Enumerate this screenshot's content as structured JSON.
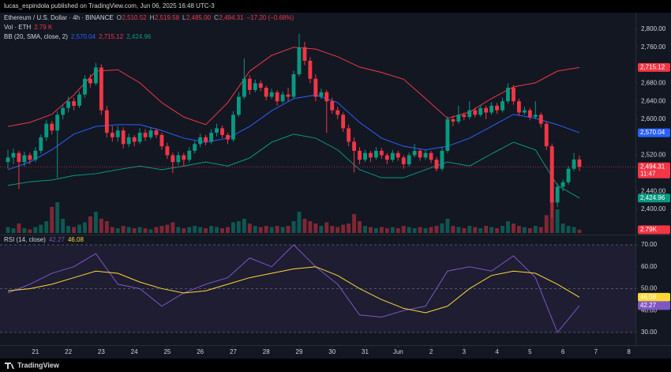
{
  "chart_data": {
    "type": "candlestick",
    "header": "lucas_espindola published on TradingView.com, Jun 06, 2025 16:48 UTC-3",
    "legend": [
      [
        {
          "text": "Ethereum / U.S. Dollar · 4h · BINANCE",
          "color": "#d1d4dc"
        },
        {
          "text": "O",
          "color": "#b2b5be"
        },
        {
          "text": "2,510.52",
          "color": "#f23645"
        },
        {
          "text": "H",
          "color": "#b2b5be"
        },
        {
          "text": "2,519.58",
          "color": "#f23645"
        },
        {
          "text": "L",
          "color": "#b2b5be"
        },
        {
          "text": "2,485.00",
          "color": "#f23645"
        },
        {
          "text": "C",
          "color": "#b2b5be"
        },
        {
          "text": "2,494.31",
          "color": "#f23645"
        },
        {
          "text": "−17.20 (−0.68%)",
          "color": "#f23645"
        }
      ],
      [
        {
          "text": "Vol · ETH",
          "color": "#d1d4dc"
        },
        {
          "text": "2.79 K",
          "color": "#f23645"
        }
      ],
      [
        {
          "text": "BB (20, SMA, close, 2)",
          "color": "#d1d4dc"
        },
        {
          "text": "2,570.04",
          "color": "#2962ff"
        },
        {
          "text": "2,715.12",
          "color": "#f23645"
        },
        {
          "text": "2,424.96",
          "color": "#089981"
        }
      ]
    ],
    "xlim": [
      -1.44,
      114.2
    ],
    "xticks": [
      {
        "value": 5,
        "label": "21"
      },
      {
        "value": 11,
        "label": "22"
      },
      {
        "value": 17,
        "label": "23"
      },
      {
        "value": 23,
        "label": "24"
      },
      {
        "value": 29,
        "label": "25"
      },
      {
        "value": 35,
        "label": "26"
      },
      {
        "value": 41,
        "label": "27"
      },
      {
        "value": 47,
        "label": "28"
      },
      {
        "value": 53,
        "label": "29"
      },
      {
        "value": 59,
        "label": "30"
      },
      {
        "value": 65,
        "label": "31"
      },
      {
        "value": 71,
        "label": "Jun"
      },
      {
        "value": 77,
        "label": "2"
      },
      {
        "value": 83,
        "label": "3"
      },
      {
        "value": 89,
        "label": "4"
      },
      {
        "value": 95,
        "label": "5"
      },
      {
        "value": 101,
        "label": "6"
      },
      {
        "value": 107,
        "label": "7"
      },
      {
        "value": 113,
        "label": "8"
      }
    ],
    "ylim": [
      2349,
      2851
    ],
    "yticks": [
      {
        "value": 2800,
        "label": "2,800.00"
      },
      {
        "value": 2760,
        "label": "2,760.00"
      },
      {
        "value": 2680,
        "label": "2,680.00"
      },
      {
        "value": 2640,
        "label": "2,640.00"
      },
      {
        "value": 2600,
        "label": "2,600.00"
      },
      {
        "value": 2520,
        "label": "2,520.00"
      },
      {
        "value": 2440,
        "label": "2,440.00"
      },
      {
        "value": 2400,
        "label": "2,400.00"
      }
    ],
    "up_color": "#089981",
    "down_color": "#f23645",
    "candles": [
      [
        2505,
        2532,
        2490,
        2515
      ],
      [
        2515,
        2535,
        2500,
        2525
      ],
      [
        2525,
        2530,
        2445,
        2505
      ],
      [
        2505,
        2528,
        2495,
        2520
      ],
      [
        2520,
        2526,
        2500,
        2510
      ],
      [
        2510,
        2538,
        2505,
        2530
      ],
      [
        2530,
        2566,
        2524,
        2560
      ],
      [
        2560,
        2598,
        2552,
        2590
      ],
      [
        2590,
        2596,
        2566,
        2575
      ],
      [
        2575,
        2618,
        2470,
        2610
      ],
      [
        2610,
        2632,
        2600,
        2625
      ],
      [
        2625,
        2650,
        2615,
        2640
      ],
      [
        2640,
        2648,
        2620,
        2630
      ],
      [
        2630,
        2662,
        2625,
        2655
      ],
      [
        2655,
        2698,
        2648,
        2690
      ],
      [
        2690,
        2700,
        2670,
        2680
      ],
      [
        2680,
        2725,
        2675,
        2715
      ],
      [
        2715,
        2722,
        2610,
        2620
      ],
      [
        2620,
        2630,
        2560,
        2570
      ],
      [
        2570,
        2585,
        2550,
        2560
      ],
      [
        2560,
        2585,
        2550,
        2575
      ],
      [
        2575,
        2582,
        2535,
        2545
      ],
      [
        2545,
        2568,
        2538,
        2560
      ],
      [
        2560,
        2565,
        2540,
        2550
      ],
      [
        2550,
        2580,
        2545,
        2570
      ],
      [
        2570,
        2578,
        2552,
        2560
      ],
      [
        2560,
        2582,
        2555,
        2575
      ],
      [
        2575,
        2580,
        2558,
        2565
      ],
      [
        2565,
        2570,
        2532,
        2540
      ],
      [
        2540,
        2548,
        2512,
        2520
      ],
      [
        2520,
        2526,
        2480,
        2505
      ],
      [
        2505,
        2528,
        2498,
        2520
      ],
      [
        2520,
        2525,
        2495,
        2510
      ],
      [
        2510,
        2538,
        2505,
        2530
      ],
      [
        2530,
        2552,
        2524,
        2545
      ],
      [
        2545,
        2568,
        2538,
        2560
      ],
      [
        2560,
        2565,
        2542,
        2550
      ],
      [
        2550,
        2578,
        2545,
        2570
      ],
      [
        2570,
        2590,
        2562,
        2580
      ],
      [
        2580,
        2586,
        2558,
        2565
      ],
      [
        2565,
        2570,
        2545,
        2555
      ],
      [
        2555,
        2618,
        2550,
        2610
      ],
      [
        2610,
        2660,
        2605,
        2650
      ],
      [
        2650,
        2735,
        2645,
        2690
      ],
      [
        2690,
        2698,
        2655,
        2665
      ],
      [
        2665,
        2688,
        2660,
        2680
      ],
      [
        2680,
        2686,
        2662,
        2670
      ],
      [
        2670,
        2675,
        2642,
        2650
      ],
      [
        2650,
        2668,
        2645,
        2660
      ],
      [
        2660,
        2665,
        2630,
        2640
      ],
      [
        2640,
        2662,
        2635,
        2655
      ],
      [
        2655,
        2670,
        2640,
        2650
      ],
      [
        2650,
        2708,
        2645,
        2700
      ],
      [
        2700,
        2790,
        2695,
        2760
      ],
      [
        2760,
        2772,
        2720,
        2730
      ],
      [
        2730,
        2738,
        2680,
        2690
      ],
      [
        2690,
        2700,
        2640,
        2650
      ],
      [
        2650,
        2668,
        2645,
        2660
      ],
      [
        2660,
        2665,
        2570,
        2640
      ],
      [
        2640,
        2648,
        2612,
        2620
      ],
      [
        2620,
        2628,
        2600,
        2610
      ],
      [
        2610,
        2615,
        2572,
        2580
      ],
      [
        2580,
        2588,
        2540,
        2550
      ],
      [
        2550,
        2560,
        2482,
        2530
      ],
      [
        2530,
        2538,
        2500,
        2510
      ],
      [
        2510,
        2532,
        2505,
        2525
      ],
      [
        2525,
        2530,
        2505,
        2515
      ],
      [
        2515,
        2538,
        2510,
        2530
      ],
      [
        2530,
        2536,
        2512,
        2520
      ],
      [
        2520,
        2525,
        2500,
        2510
      ],
      [
        2510,
        2532,
        2505,
        2525
      ],
      [
        2525,
        2530,
        2508,
        2515
      ],
      [
        2515,
        2520,
        2490,
        2500
      ],
      [
        2500,
        2526,
        2495,
        2520
      ],
      [
        2520,
        2545,
        2515,
        2530
      ],
      [
        2530,
        2535,
        2508,
        2515
      ],
      [
        2515,
        2532,
        2510,
        2525
      ],
      [
        2525,
        2530,
        2502,
        2510
      ],
      [
        2510,
        2516,
        2484,
        2490
      ],
      [
        2490,
        2538,
        2485,
        2530
      ],
      [
        2530,
        2606,
        2525,
        2600
      ],
      [
        2600,
        2608,
        2585,
        2595
      ],
      [
        2595,
        2630,
        2590,
        2610
      ],
      [
        2610,
        2615,
        2598,
        2605
      ],
      [
        2605,
        2640,
        2600,
        2620
      ],
      [
        2620,
        2626,
        2604,
        2610
      ],
      [
        2610,
        2632,
        2606,
        2625
      ],
      [
        2625,
        2630,
        2600,
        2615
      ],
      [
        2615,
        2638,
        2610,
        2630
      ],
      [
        2630,
        2636,
        2612,
        2620
      ],
      [
        2620,
        2648,
        2615,
        2640
      ],
      [
        2640,
        2680,
        2635,
        2670
      ],
      [
        2670,
        2676,
        2632,
        2640
      ],
      [
        2640,
        2646,
        2608,
        2615
      ],
      [
        2615,
        2628,
        2610,
        2620
      ],
      [
        2620,
        2625,
        2598,
        2605
      ],
      [
        2605,
        2640,
        2600,
        2610
      ],
      [
        2610,
        2615,
        2582,
        2590
      ],
      [
        2590,
        2596,
        2532,
        2540
      ],
      [
        2540,
        2546,
        2382,
        2415
      ],
      [
        2415,
        2458,
        2405,
        2450
      ],
      [
        2450,
        2466,
        2440,
        2460
      ],
      [
        2460,
        2496,
        2455,
        2490
      ],
      [
        2490,
        2525,
        2485,
        2510.52
      ],
      [
        2510.52,
        2519.58,
        2485,
        2494.31
      ]
    ],
    "volume": [
      5,
      4,
      8,
      4,
      3,
      5,
      7,
      10,
      22,
      26,
      12,
      6,
      5,
      7,
      9,
      14,
      18,
      12,
      10,
      5,
      4,
      6,
      5,
      4,
      5,
      4,
      3,
      5,
      6,
      7,
      9,
      5,
      4,
      5,
      6,
      5,
      4,
      6,
      5,
      4,
      5,
      9,
      10,
      12,
      8,
      6,
      5,
      6,
      5,
      6,
      5,
      6,
      10,
      18,
      12,
      10,
      8,
      6,
      9,
      6,
      5,
      7,
      8,
      16,
      10,
      6,
      5,
      4,
      5,
      4,
      5,
      4,
      6,
      5,
      4,
      5,
      4,
      5,
      6,
      8,
      12,
      6,
      5,
      4,
      6,
      5,
      4,
      6,
      5,
      4,
      6,
      10,
      8,
      6,
      5,
      4,
      6,
      5,
      15,
      28,
      20,
      8,
      6,
      5,
      2.79
    ],
    "volume_ylim": [
      0,
      60
    ],
    "volume_marker": {
      "value": 2.79,
      "label": "2.79K",
      "color": "#f23645"
    },
    "sample_x": [
      0,
      4,
      8,
      12,
      16,
      20,
      24,
      28,
      32,
      36,
      40,
      44,
      48,
      52,
      56,
      60,
      64,
      68,
      72,
      76,
      80,
      84,
      88,
      92,
      96,
      100,
      104
    ],
    "bands": [
      {
        "color": "#f23645",
        "values": [
          2584,
          2593,
          2611,
          2654,
          2707,
          2710,
          2681,
          2637,
          2605,
          2588,
          2637,
          2707,
          2742,
          2760,
          2756,
          2739,
          2716,
          2704,
          2689,
          2646,
          2602,
          2616,
          2646,
          2672,
          2681,
          2707,
          2715.12
        ]
      },
      {
        "color": "#2962ff",
        "values": [
          2488,
          2505,
          2532,
          2567,
          2584,
          2588,
          2588,
          2575,
          2558,
          2549,
          2558,
          2584,
          2619,
          2646,
          2654,
          2637,
          2593,
          2558,
          2540,
          2532,
          2540,
          2558,
          2584,
          2611,
          2602,
          2588,
          2570.04
        ]
      },
      {
        "color": "#089981",
        "values": [
          2453,
          2461,
          2465,
          2475,
          2479,
          2488,
          2496,
          2488,
          2496,
          2505,
          2496,
          2514,
          2549,
          2567,
          2558,
          2532,
          2488,
          2470,
          2470,
          2488,
          2505,
          2496,
          2523,
          2549,
          2532,
          2453,
          2424.96
        ]
      }
    ],
    "price_markers": [
      {
        "value": 2715.12,
        "label": "2,715.12",
        "color": "#f23645"
      },
      {
        "value": 2570.04,
        "label": "2,570.04",
        "color": "#2962ff"
      },
      {
        "value": 2494.31,
        "label": "2,494.31",
        "sub": "11:47",
        "color": "#f23645"
      },
      {
        "value": 2424.96,
        "label": "2,424.96",
        "color": "#089981"
      }
    ],
    "rsi": {
      "legend": [
        {
          "text": "RSI (14, close)",
          "color": "#d1d4dc"
        },
        {
          "text": "42.27",
          "color": "#7e57c2"
        },
        {
          "text": "46.08",
          "color": "#fdd835"
        }
      ],
      "ylim": [
        24.2,
        73.6
      ],
      "yticks": [
        {
          "value": 70,
          "label": "70.00"
        },
        {
          "value": 60,
          "label": "60.00"
        },
        {
          "value": 50,
          "label": "50.00"
        },
        {
          "value": 40,
          "label": "40.00"
        },
        {
          "value": 30,
          "label": "30.00"
        }
      ],
      "levels": [
        70,
        50,
        30
      ],
      "series": [
        {
          "color": "#7e57c2",
          "values": [
            48,
            52,
            57,
            60,
            66,
            52,
            50,
            42,
            48,
            52,
            55,
            64,
            60,
            70,
            60,
            52,
            38,
            37,
            40,
            42,
            58,
            60,
            58,
            65,
            55,
            30,
            42.27
          ]
        },
        {
          "color": "#fdd835",
          "values": [
            49,
            50,
            52,
            55,
            58,
            57,
            53,
            50,
            48,
            49,
            52,
            55,
            57,
            59,
            60,
            56,
            50,
            45,
            41,
            39,
            42,
            50,
            56,
            58,
            57,
            52,
            46.08
          ]
        }
      ],
      "markers": [
        {
          "value": 46.08,
          "label": "46.08",
          "color": "#fdd835"
        },
        {
          "value": 42.27,
          "label": "42.27",
          "color": "#7e57c2"
        }
      ]
    },
    "brand": "TradingView"
  }
}
